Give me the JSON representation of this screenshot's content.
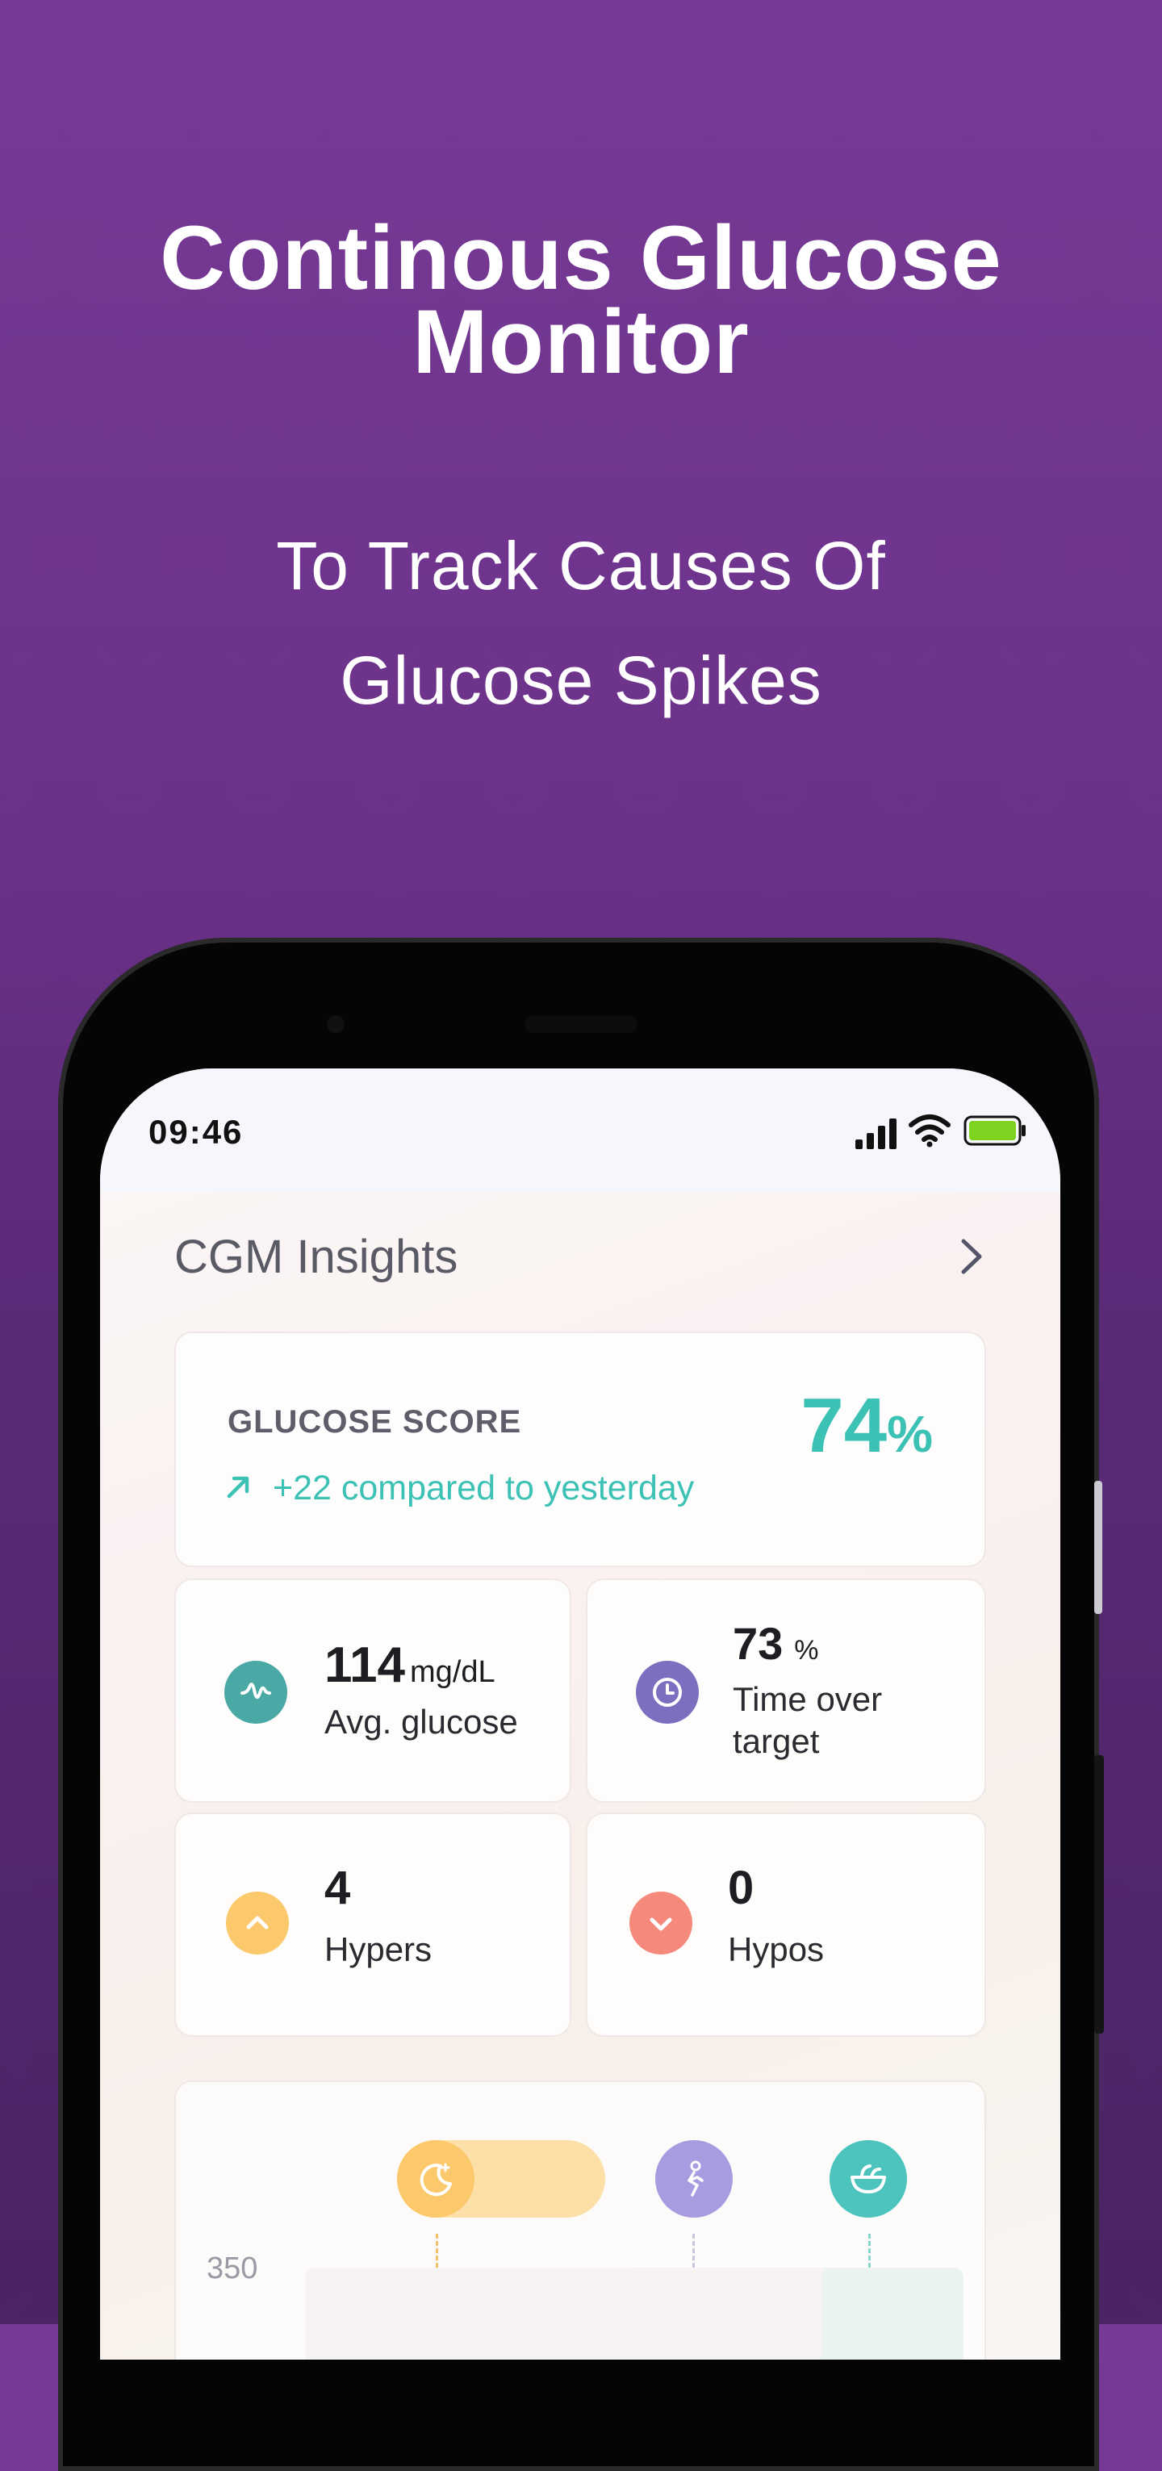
{
  "hero": {
    "title_line1": "Continous Glucose",
    "title_line2": "Monitor",
    "subtitle_line1": "To Track Causes Of",
    "subtitle_line2": "Glucose Spikes"
  },
  "status_bar": {
    "time": "09:46",
    "battery_color": "#7ed321"
  },
  "insights": {
    "title": "CGM Insights",
    "glucose_score": {
      "label": "GLUCOSE SCORE",
      "value": "74",
      "unit": "%",
      "comparison": "+22 compared to yesterday"
    },
    "metrics": [
      {
        "value": "114",
        "unit": "mg/dL",
        "label": "Avg. glucose",
        "icon": "waveform-icon",
        "color": "#4aa9a4"
      },
      {
        "value": "73",
        "unit": "%",
        "label_line1": "Time over",
        "label_line2": "target",
        "icon": "clock-icon",
        "color": "#7c6fbf"
      },
      {
        "value": "4",
        "label": "Hypers",
        "icon": "chevron-up-icon",
        "color": "#fbc96c"
      },
      {
        "value": "0",
        "label": "Hypos",
        "icon": "chevron-down-icon",
        "color": "#f58a7c"
      }
    ]
  },
  "timeline": {
    "y_axis_top_label": "350",
    "events": [
      {
        "icon": "moon-sleep-icon",
        "color": "#fbc96c"
      },
      {
        "icon": "exercise-icon",
        "color": "#a99be0"
      },
      {
        "icon": "food-bowl-icon",
        "color": "#4cc4bd"
      }
    ]
  }
}
